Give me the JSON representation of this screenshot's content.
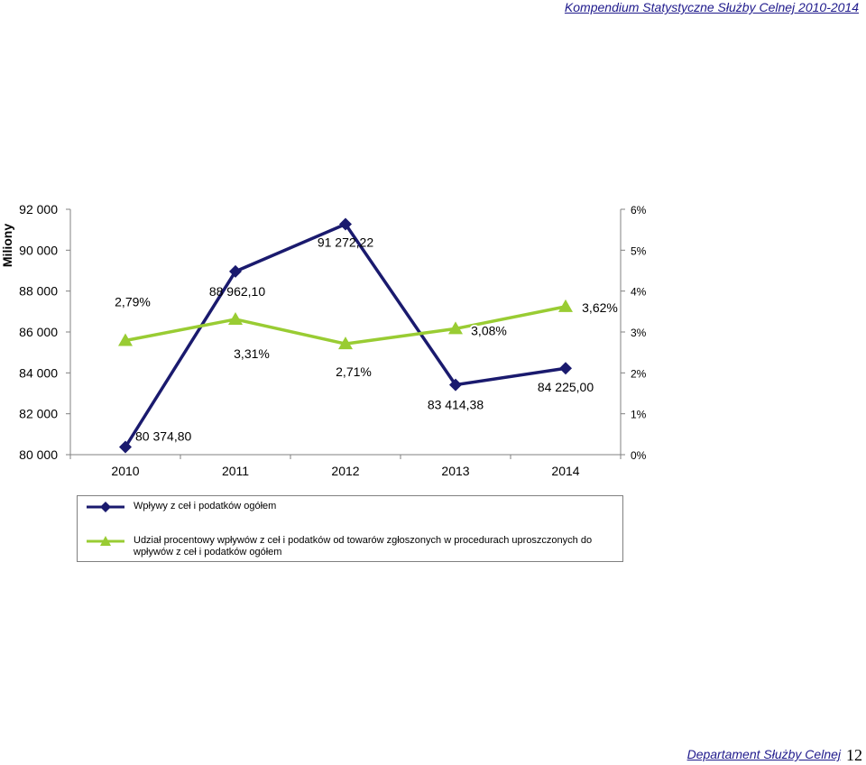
{
  "header": {
    "title": "Kompendium Statystyczne Służby Celnej 2010-2014"
  },
  "chart_data": {
    "type": "line",
    "categories": [
      "2010",
      "2011",
      "2012",
      "2013",
      "2014"
    ],
    "y_left": {
      "label": "Miliony",
      "range": [
        80000,
        92000
      ],
      "ticks": [
        80000,
        82000,
        84000,
        86000,
        88000,
        90000,
        92000
      ],
      "tick_labels": [
        "80 000",
        "82 000",
        "84 000",
        "86 000",
        "88 000",
        "90 000",
        "92 000"
      ]
    },
    "y_right": {
      "range": [
        0,
        6
      ],
      "ticks": [
        0,
        1,
        2,
        3,
        4,
        5,
        6
      ],
      "tick_labels": [
        "0%",
        "1%",
        "2%",
        "3%",
        "4%",
        "5%",
        "6%"
      ]
    },
    "series": [
      {
        "name": "Wpływy z ceł i podatków ogółem",
        "axis": "left",
        "color": "#1a1a6e",
        "marker": "diamond",
        "values": [
          80374.8,
          88962.1,
          91272.22,
          83414.38,
          84225.0
        ],
        "data_labels": [
          "80 374,80",
          "88 962,10",
          "91 272,22",
          "83 414,38",
          "84 225,00"
        ]
      },
      {
        "name": "Udział procentowy wpływów z ceł i podatków od towarów zgłoszonych w procedurach uproszczonych do wpływów z ceł i podatków ogółem",
        "axis": "right",
        "color": "#99cc33",
        "marker": "triangle",
        "values": [
          2.79,
          3.31,
          2.71,
          3.08,
          3.62
        ],
        "data_labels": [
          "2,79%",
          "3,31%",
          "2,71%",
          "3,08%",
          "3,62%"
        ]
      }
    ],
    "grid": false,
    "legend_position": "bottom"
  },
  "footer": {
    "department": "Departament Służby Celnej",
    "page": "12"
  }
}
